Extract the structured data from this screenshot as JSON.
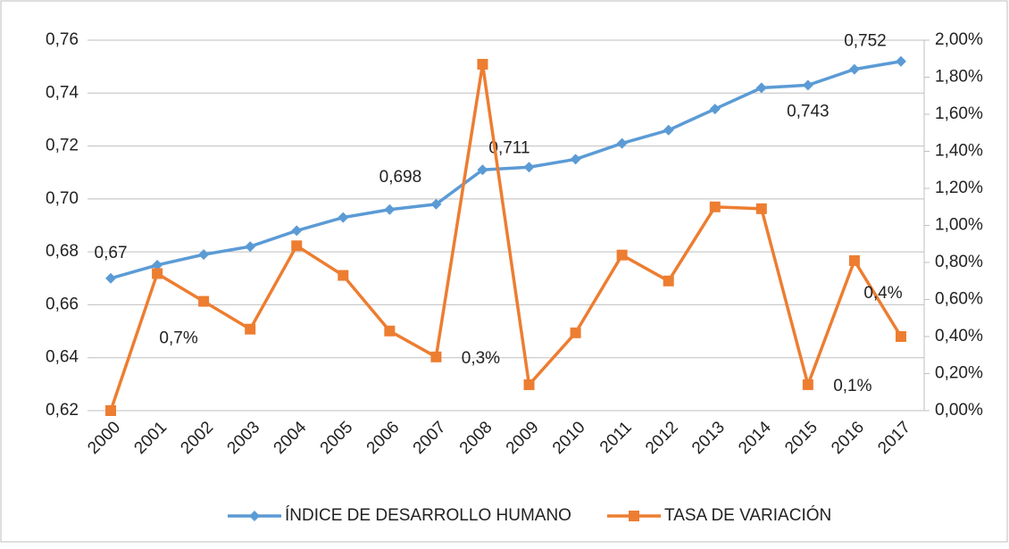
{
  "chart_data": {
    "type": "line",
    "categories": [
      "2000",
      "2001",
      "2002",
      "2003",
      "2004",
      "2005",
      "2006",
      "2007",
      "2008",
      "2009",
      "2010",
      "2011",
      "2012",
      "2013",
      "2014",
      "2015",
      "2016",
      "2017"
    ],
    "series": [
      {
        "name": "ÍNDICE DE DESARROLLO HUMANO",
        "color": "#5b9bd5",
        "marker": "diamond",
        "values": [
          0.67,
          0.675,
          0.679,
          0.682,
          0.688,
          0.693,
          0.696,
          0.698,
          0.711,
          0.712,
          0.715,
          0.721,
          0.726,
          0.734,
          0.742,
          0.743,
          0.749,
          0.752
        ],
        "value_labels": [
          "0,67",
          null,
          null,
          null,
          null,
          null,
          null,
          "0,698",
          "0,711",
          null,
          null,
          null,
          null,
          null,
          null,
          "0,743",
          null,
          "0,752"
        ]
      },
      {
        "name": "TASA DE VARIACIÓN",
        "color": "#ed7d31",
        "marker": "square",
        "axis": "y2",
        "values": [
          0,
          0.74,
          0.59,
          0.44,
          0.89,
          0.73,
          0.43,
          0.29,
          1.87,
          0.14,
          0.42,
          0.84,
          0.7,
          1.1,
          1.09,
          0.14,
          0.81,
          0.4
        ],
        "value_labels": [
          null,
          "0,7%",
          null,
          null,
          null,
          null,
          null,
          "0,3%",
          null,
          null,
          null,
          null,
          null,
          null,
          null,
          "0,1%",
          null,
          "0,4%"
        ]
      }
    ],
    "ylim": [
      0.62,
      0.76
    ],
    "yticks": [
      {
        "value": 0.62,
        "label": "0,62"
      },
      {
        "value": 0.64,
        "label": "0,64"
      },
      {
        "value": 0.66,
        "label": "0,66"
      },
      {
        "value": 0.68,
        "label": "0,68"
      },
      {
        "value": 0.7,
        "label": "0,70"
      },
      {
        "value": 0.72,
        "label": "0,72"
      },
      {
        "value": 0.74,
        "label": "0,74"
      },
      {
        "value": 0.76,
        "label": "0,76"
      }
    ],
    "y2lim": [
      0,
      2
    ],
    "y2ticks": [
      {
        "value": 0,
        "label": "0,00%"
      },
      {
        "value": 0.2,
        "label": "0,20%"
      },
      {
        "value": 0.4,
        "label": "0,40%"
      },
      {
        "value": 0.6,
        "label": "0,60%"
      },
      {
        "value": 0.8,
        "label": "0,80%"
      },
      {
        "value": 1.0,
        "label": "1,00%"
      },
      {
        "value": 1.2,
        "label": "1,20%"
      },
      {
        "value": 1.4,
        "label": "1,40%"
      },
      {
        "value": 1.6,
        "label": "1,60%"
      },
      {
        "value": 1.8,
        "label": "1,80%"
      },
      {
        "value": 2.0,
        "label": "2,00%"
      }
    ],
    "grid": true,
    "legend": "bottom"
  }
}
